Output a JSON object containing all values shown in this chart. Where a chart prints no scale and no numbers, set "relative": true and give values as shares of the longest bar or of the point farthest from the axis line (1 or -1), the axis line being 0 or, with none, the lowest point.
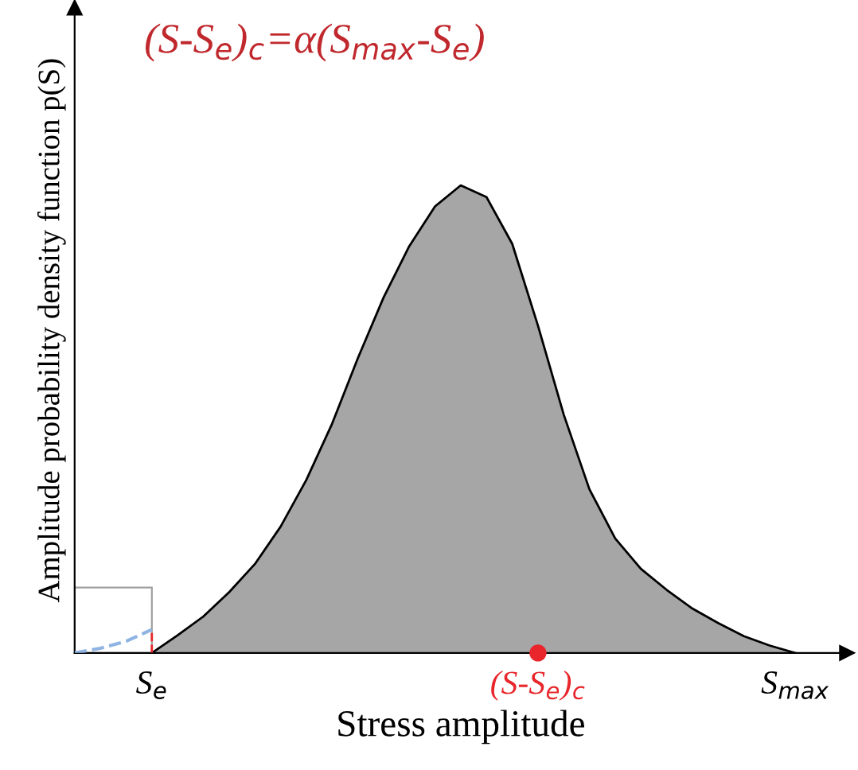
{
  "chart_data": {
    "type": "area",
    "relative": true,
    "xlabel": "Stress amplitude",
    "ylabel": "Amplitude probability density function p(S)",
    "annotations": [
      "(S-S$_{e}$)$_{c}$=α(S$_{max}$-S$_{e}$)"
    ],
    "categories": [
      null,
      null,
      null,
      "S$_{e}$",
      null,
      null,
      null,
      null,
      null,
      null,
      null,
      null,
      null,
      null,
      null,
      null,
      null,
      null,
      "(S-S$_{e}$)$_{c}$",
      null,
      null,
      null,
      null,
      null,
      null,
      null,
      null,
      null,
      "S$_{max}$",
      null,
      null
    ],
    "series": [
      {
        "color": "#a6a6a6",
        "values": [
          null,
          null,
          null,
          0,
          0.038,
          0.078,
          0.13,
          0.19,
          0.27,
          0.37,
          0.49,
          0.63,
          0.76,
          0.87,
          0.955,
          1,
          0.975,
          0.875,
          0.7,
          0.51,
          0.35,
          0.245,
          0.18,
          0.135,
          0.095,
          0.064,
          0.036,
          0.016,
          0,
          null,
          null
        ]
      },
      {
        "type": "line",
        "color": "#8fb4e3",
        "line_style": "dashed",
        "values": [
          0,
          0.01,
          0.025,
          0.05,
          null,
          null,
          null,
          null,
          null,
          null,
          null,
          null,
          null,
          null,
          null,
          null,
          null,
          null,
          null,
          null,
          null,
          null,
          null,
          null,
          null,
          null,
          null,
          null,
          null,
          null,
          null
        ]
      },
      {
        "type": "scatter",
        "color": "#e8262b",
        "marker": "circle",
        "values": [
          null,
          null,
          null,
          null,
          null,
          null,
          null,
          null,
          null,
          null,
          null,
          null,
          null,
          null,
          null,
          null,
          null,
          null,
          0,
          null,
          null,
          null,
          null,
          null,
          null,
          null,
          null,
          null,
          null,
          null,
          null
        ]
      }
    ],
    "grid": false,
    "legend": false
  }
}
